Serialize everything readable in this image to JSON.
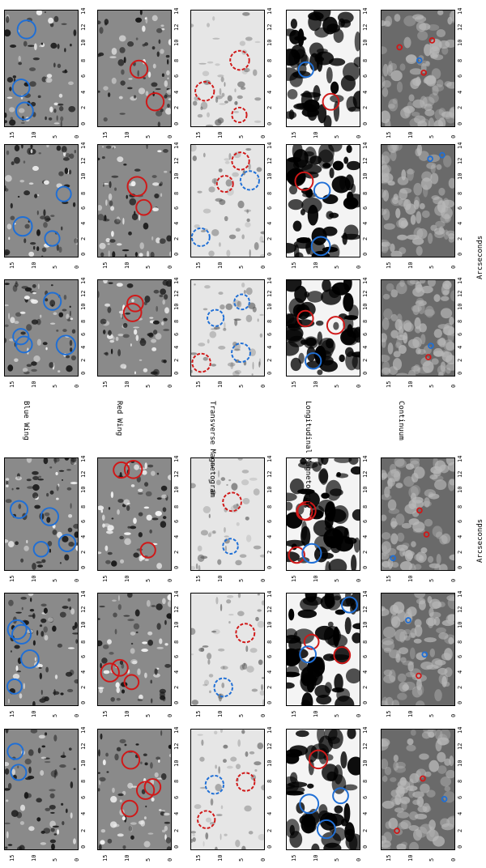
{
  "row_labels": [
    "Blue Wing",
    "Red Wing",
    "Transverse Magnetogram",
    "Longitudinal Magnetogram",
    "Continuum"
  ],
  "axis": {
    "xlabel": "Arcseconds",
    "ylabel": "Arcseconds",
    "ticks_long": [
      "0",
      "2",
      "4",
      "6",
      "8",
      "10",
      "12",
      "14"
    ],
    "ticks_short": [
      "0",
      "5",
      "10",
      "15"
    ]
  },
  "colors": {
    "blue": "#1f6fd6",
    "red": "#d01818"
  }
}
